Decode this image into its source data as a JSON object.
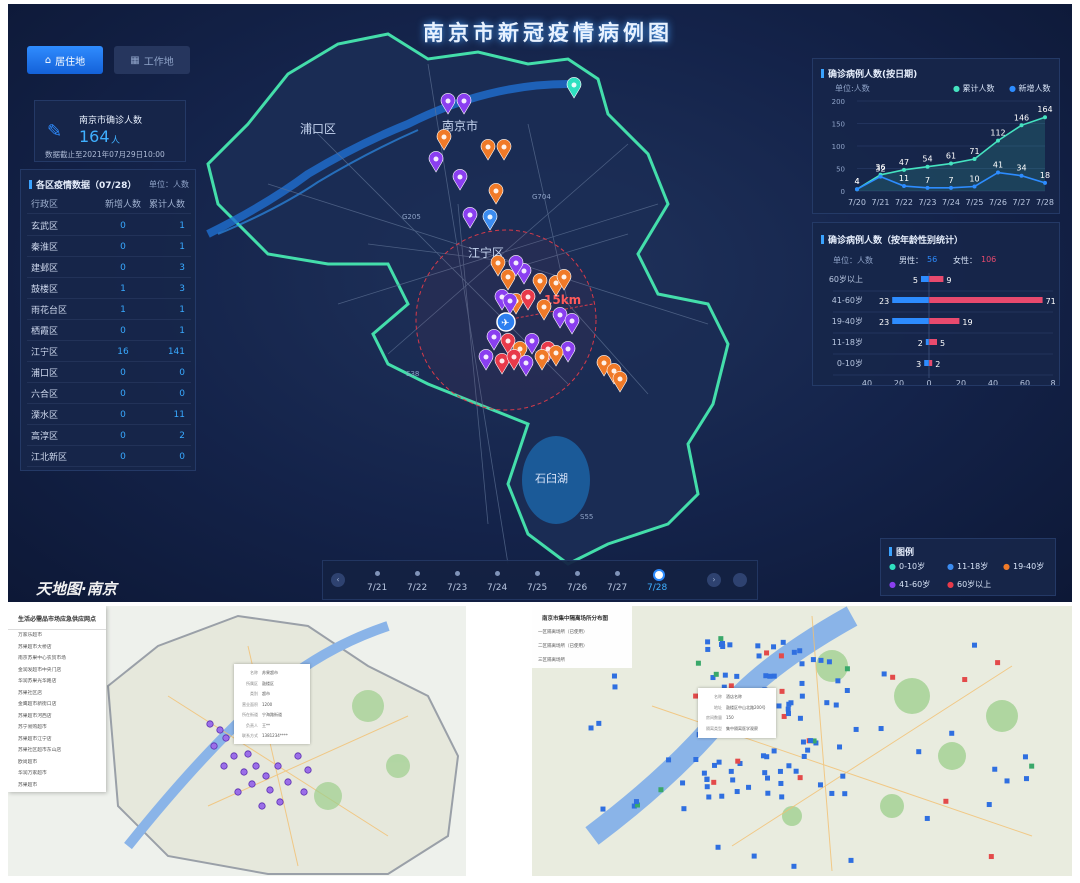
{
  "header": {
    "title": "南京市新冠疫情病例图"
  },
  "tabs": {
    "active": "居住地",
    "inactive": "工作地"
  },
  "summary": {
    "label": "南京市确诊人数",
    "count": "164",
    "unit": "人",
    "updated": "数据截止至2021年07月29日10:00"
  },
  "districts": {
    "title": "各区疫情数据（07/28）",
    "unit": "单位：人数",
    "headers": [
      "行政区",
      "新增人数",
      "累计人数"
    ],
    "rows": [
      [
        "玄武区",
        "0",
        "1"
      ],
      [
        "秦淮区",
        "0",
        "1"
      ],
      [
        "建邺区",
        "0",
        "3"
      ],
      [
        "鼓楼区",
        "1",
        "3"
      ],
      [
        "雨花台区",
        "1",
        "1"
      ],
      [
        "栖霞区",
        "0",
        "1"
      ],
      [
        "江宁区",
        "16",
        "141"
      ],
      [
        "浦口区",
        "0",
        "0"
      ],
      [
        "六合区",
        "0",
        "0"
      ],
      [
        "溧水区",
        "0",
        "11"
      ],
      [
        "高淳区",
        "0",
        "2"
      ],
      [
        "江北新区",
        "0",
        "0"
      ]
    ]
  },
  "map": {
    "labels": [
      "浦口区",
      "南京市",
      "江宁区",
      "石臼湖"
    ],
    "roads": [
      "G704",
      "G205",
      "S38",
      "S55"
    ],
    "radius_label": "15km",
    "brand": "天地图·南京"
  },
  "trend_chart": {
    "title": "确诊病例人数(按日期)",
    "unit": "单位:人数",
    "legend": [
      "累计人数",
      "新增人数"
    ],
    "chart_data": {
      "type": "line",
      "categories": [
        "7/20",
        "7/21",
        "7/22",
        "7/23",
        "7/24",
        "7/25",
        "7/26",
        "7/27",
        "7/28"
      ],
      "series": [
        {
          "name": "累计人数",
          "values": [
            4,
            36,
            47,
            54,
            61,
            71,
            112,
            146,
            164
          ]
        },
        {
          "name": "新增人数",
          "values": [
            4,
            32,
            11,
            7,
            7,
            10,
            41,
            34,
            18
          ]
        }
      ],
      "yticks": [
        "0",
        "50",
        "100",
        "150",
        "200"
      ],
      "ylim": [
        0,
        200
      ]
    }
  },
  "gender_chart": {
    "title": "确诊病例人数（按年龄性别统计）",
    "unit": "单位：人数",
    "male_label": "男性：",
    "male_total": "56",
    "female_label": "女性：",
    "female_total": "106",
    "chart_data": {
      "type": "bar",
      "categories": [
        "60岁以上",
        "41-60岁",
        "19-40岁",
        "11-18岁",
        "0-10岁"
      ],
      "series": [
        {
          "name": "男性",
          "values": [
            5,
            23,
            23,
            2,
            3
          ]
        },
        {
          "name": "女性",
          "values": [
            9,
            71,
            19,
            5,
            2
          ]
        }
      ],
      "xticks": [
        "40",
        "20",
        "0",
        "20",
        "40",
        "60",
        "8"
      ]
    }
  },
  "legend": {
    "title": "图例",
    "items": [
      "0-10岁",
      "11-18岁",
      "19-40岁",
      "41-60岁",
      "60岁以上"
    ],
    "colors": [
      "#2fe0c0",
      "#3b8cf0",
      "#f07a28",
      "#8a3ff0",
      "#e83a4a"
    ]
  },
  "timeline": {
    "dates": [
      "7/21",
      "7/22",
      "7/23",
      "7/24",
      "7/25",
      "7/26",
      "7/27",
      "7/28"
    ],
    "selected": "7/28"
  },
  "bottom_left": {
    "list_title": "生活必需品市场应急供应网点",
    "items": [
      "万家乐超市",
      "苏果超市大桥店",
      "南京苏果中心农贸市场",
      "金润发超市中央门店",
      "华润苏果光华路店",
      "苏果社区店",
      "金鹰超市新街口店",
      "苏果超市河西店",
      "苏宁易购超市",
      "苏果超市江宁店",
      "苏果社区超市东山店",
      "欧尚超市",
      "华润万家超市",
      "苏果超市"
    ],
    "popup": [
      [
        "名称",
        "苏果超市"
      ],
      [
        "所属区",
        "鼓楼区"
      ],
      [
        "类别",
        "超市"
      ],
      [
        "营业面积",
        "1200"
      ],
      [
        "所在街道",
        "宁海路街道"
      ],
      [
        "负责人",
        "王**"
      ],
      [
        "联系方式",
        "1381234****"
      ]
    ]
  },
  "bottom_right": {
    "menu_title": "南京市集中隔离场所分布图",
    "menu_items": [
      "一区隔离场所（已使用）",
      "二区隔离场所（已使用）",
      "三区隔离场所"
    ],
    "popup": [
      [
        "名称",
        "酒店名称"
      ],
      [
        "地址",
        "鼓楼区中山北路200号"
      ],
      [
        "房间数量",
        "150"
      ],
      [
        "隔离类型",
        "集中隔离医学观察"
      ]
    ]
  }
}
